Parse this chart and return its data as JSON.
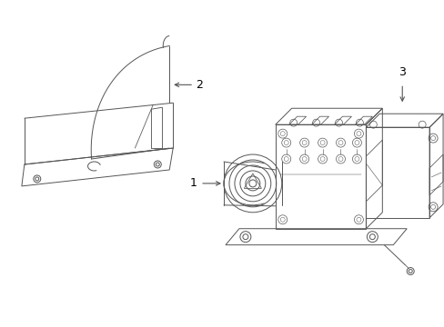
{
  "background_color": "#ffffff",
  "figsize": [
    4.89,
    3.6
  ],
  "dpi": 100,
  "label_1": "1",
  "label_2": "2",
  "label_3": "3",
  "label_color": "#000000",
  "line_color": "#555555",
  "label_fontsize": 9,
  "lw": 0.7
}
